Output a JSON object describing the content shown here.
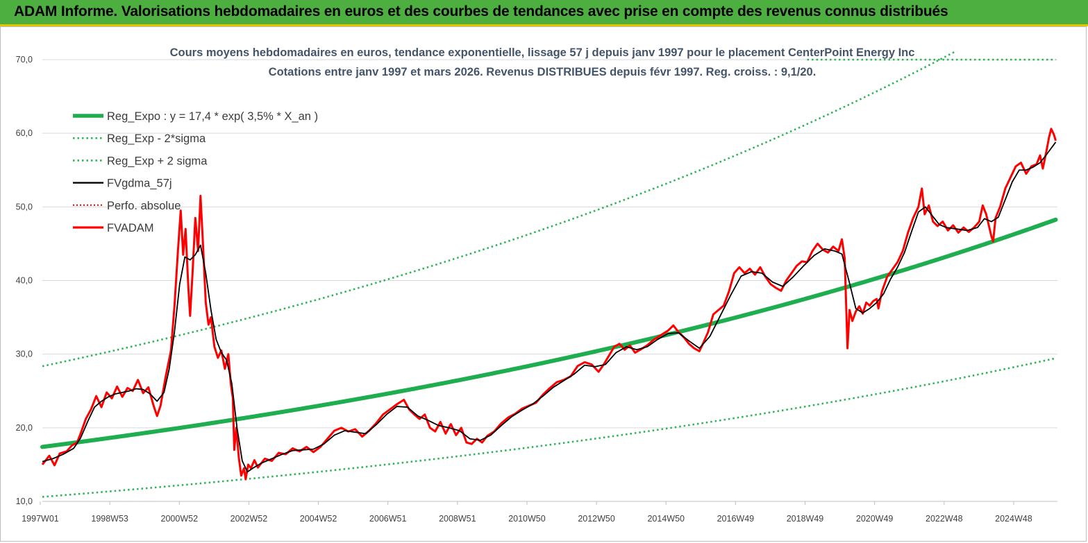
{
  "header": {
    "title": "ADAM Informe. Valorisations hebdomadaires en euros et des courbes de tendances avec prise en compte des revenus connus distribués"
  },
  "colors": {
    "header_bg": "#4CAF3F",
    "header_border": "#E8C400",
    "reg_green": "#1FAE4F",
    "band_green": "#2DB457",
    "smooth_black": "#000000",
    "price_red": "#FF0000",
    "perfo_red": "#E00000"
  },
  "chart_data": {
    "type": "line",
    "title_line1": "Cours moyens hebdomadaires en euros, tendance exponentielle, lissage 57 j depuis janv 1997 pour le placement CenterPoint Energy Inc",
    "title_line2": "Cotations entre janv 1997 et mars 2026. Revenus DISTRIBUES depuis févr 1997. Reg. croiss. : 9,1/20.",
    "xlabel": "",
    "ylabel": "",
    "ylim": [
      10,
      70
    ],
    "xlim": [
      1997.0,
      2026.2
    ],
    "y_ticks": [
      "70,0",
      "60,0",
      "50,0",
      "40,0",
      "30,0",
      "20,0",
      "10,0"
    ],
    "x_ticks": [
      {
        "label": "1997W01",
        "year": 1997.0
      },
      {
        "label": "1998W53",
        "year": 1999.0
      },
      {
        "label": "2000W52",
        "year": 2001.0
      },
      {
        "label": "2002W52",
        "year": 2003.0
      },
      {
        "label": "2004W52",
        "year": 2005.0
      },
      {
        "label": "2006W51",
        "year": 2007.0
      },
      {
        "label": "2008W51",
        "year": 2009.0
      },
      {
        "label": "2010W50",
        "year": 2011.0
      },
      {
        "label": "2012W50",
        "year": 2013.0
      },
      {
        "label": "2014W50",
        "year": 2015.0
      },
      {
        "label": "2016W49",
        "year": 2017.0
      },
      {
        "label": "2018W49",
        "year": 2019.0
      },
      {
        "label": "2020W49",
        "year": 2021.0
      },
      {
        "label": "2022W48",
        "year": 2023.0
      },
      {
        "label": "2024W48",
        "year": 2025.0
      }
    ],
    "legend": [
      {
        "key": "reg",
        "label": "Reg_Expo : y = 17,4 * exp( 3,5% *  X_an )"
      },
      {
        "key": "lower",
        "label": "Reg_Exp - 2*sigma"
      },
      {
        "key": "upper",
        "label": "Reg_Exp + 2 sigma"
      },
      {
        "key": "smooth",
        "label": "FVgdma_57j"
      },
      {
        "key": "perfo",
        "label": "Perfo. absolue"
      },
      {
        "key": "price",
        "label": "FVADAM"
      }
    ],
    "regression": {
      "a": 17.4,
      "rate": 0.035,
      "lower_factor": 0.61,
      "upper_factor": 1.63
    },
    "perfo_absolue_level": 70.0,
    "perfo_absolue_from_year": 2019.0,
    "fvadam": [
      [
        1997.0,
        15.0
      ],
      [
        1997.2,
        16.2
      ],
      [
        1997.35,
        14.9
      ],
      [
        1997.5,
        16.5
      ],
      [
        1997.7,
        16.8
      ],
      [
        1997.85,
        17.6
      ],
      [
        1998.0,
        18.0
      ],
      [
        1998.1,
        19.2
      ],
      [
        1998.25,
        21.2
      ],
      [
        1998.4,
        22.5
      ],
      [
        1998.55,
        24.3
      ],
      [
        1998.7,
        22.8
      ],
      [
        1998.85,
        24.8
      ],
      [
        1999.0,
        24.0
      ],
      [
        1999.15,
        25.6
      ],
      [
        1999.3,
        24.2
      ],
      [
        1999.45,
        25.4
      ],
      [
        1999.6,
        25.0
      ],
      [
        1999.75,
        26.5
      ],
      [
        1999.9,
        24.7
      ],
      [
        2000.05,
        25.5
      ],
      [
        2000.2,
        23.0
      ],
      [
        2000.3,
        21.6
      ],
      [
        2000.4,
        23.0
      ],
      [
        2000.55,
        27.0
      ],
      [
        2000.7,
        30.5
      ],
      [
        2000.8,
        36.5
      ],
      [
        2000.9,
        44.0
      ],
      [
        2000.98,
        49.5
      ],
      [
        2001.05,
        43.5
      ],
      [
        2001.12,
        47.0
      ],
      [
        2001.2,
        39.0
      ],
      [
        2001.25,
        35.2
      ],
      [
        2001.32,
        41.0
      ],
      [
        2001.4,
        48.5
      ],
      [
        2001.48,
        44.0
      ],
      [
        2001.55,
        51.5
      ],
      [
        2001.62,
        45.0
      ],
      [
        2001.7,
        37.0
      ],
      [
        2001.78,
        34.0
      ],
      [
        2001.85,
        35.0
      ],
      [
        2001.95,
        31.0
      ],
      [
        2002.05,
        29.5
      ],
      [
        2002.15,
        30.5
      ],
      [
        2002.25,
        28.0
      ],
      [
        2002.35,
        30.0
      ],
      [
        2002.42,
        26.0
      ],
      [
        2002.48,
        24.0
      ],
      [
        2002.52,
        17.0
      ],
      [
        2002.58,
        20.0
      ],
      [
        2002.65,
        16.0
      ],
      [
        2002.72,
        13.5
      ],
      [
        2002.8,
        14.5
      ],
      [
        2002.85,
        13.0
      ],
      [
        2002.92,
        15.0
      ],
      [
        2003.0,
        14.5
      ],
      [
        2003.1,
        15.6
      ],
      [
        2003.2,
        14.6
      ],
      [
        2003.4,
        15.8
      ],
      [
        2003.6,
        15.5
      ],
      [
        2003.8,
        16.6
      ],
      [
        2004.0,
        16.4
      ],
      [
        2004.2,
        17.2
      ],
      [
        2004.4,
        16.8
      ],
      [
        2004.6,
        17.4
      ],
      [
        2004.8,
        16.7
      ],
      [
        2005.0,
        17.4
      ],
      [
        2005.2,
        18.5
      ],
      [
        2005.4,
        19.6
      ],
      [
        2005.6,
        20.0
      ],
      [
        2005.8,
        19.5
      ],
      [
        2006.0,
        19.8
      ],
      [
        2006.2,
        18.8
      ],
      [
        2006.4,
        19.6
      ],
      [
        2006.6,
        20.6
      ],
      [
        2006.8,
        21.8
      ],
      [
        2007.0,
        22.5
      ],
      [
        2007.2,
        23.2
      ],
      [
        2007.4,
        23.8
      ],
      [
        2007.55,
        22.5
      ],
      [
        2007.7,
        21.8
      ],
      [
        2007.85,
        21.2
      ],
      [
        2008.0,
        21.8
      ],
      [
        2008.15,
        20.0
      ],
      [
        2008.3,
        19.5
      ],
      [
        2008.45,
        20.8
      ],
      [
        2008.6,
        19.2
      ],
      [
        2008.75,
        20.5
      ],
      [
        2008.9,
        19.0
      ],
      [
        2009.05,
        20.0
      ],
      [
        2009.2,
        18.0
      ],
      [
        2009.35,
        17.8
      ],
      [
        2009.5,
        18.5
      ],
      [
        2009.65,
        18.0
      ],
      [
        2009.8,
        18.9
      ],
      [
        2010.0,
        19.5
      ],
      [
        2010.2,
        20.6
      ],
      [
        2010.4,
        21.4
      ],
      [
        2010.6,
        21.9
      ],
      [
        2010.8,
        22.6
      ],
      [
        2011.0,
        23.0
      ],
      [
        2011.2,
        23.4
      ],
      [
        2011.4,
        24.5
      ],
      [
        2011.6,
        25.4
      ],
      [
        2011.8,
        26.2
      ],
      [
        2012.0,
        26.5
      ],
      [
        2012.2,
        27.0
      ],
      [
        2012.4,
        28.4
      ],
      [
        2012.6,
        28.9
      ],
      [
        2012.8,
        28.6
      ],
      [
        2013.0,
        27.6
      ],
      [
        2013.15,
        28.6
      ],
      [
        2013.3,
        29.8
      ],
      [
        2013.45,
        31.0
      ],
      [
        2013.6,
        31.4
      ],
      [
        2013.75,
        30.6
      ],
      [
        2013.9,
        31.2
      ],
      [
        2014.05,
        30.2
      ],
      [
        2014.2,
        30.6
      ],
      [
        2014.4,
        31.2
      ],
      [
        2014.6,
        32.0
      ],
      [
        2014.8,
        32.6
      ],
      [
        2015.0,
        33.2
      ],
      [
        2015.15,
        33.9
      ],
      [
        2015.3,
        33.0
      ],
      [
        2015.45,
        32.3
      ],
      [
        2015.6,
        31.4
      ],
      [
        2015.75,
        30.8
      ],
      [
        2015.9,
        30.4
      ],
      [
        2016.0,
        31.4
      ],
      [
        2016.15,
        33.0
      ],
      [
        2016.3,
        35.4
      ],
      [
        2016.45,
        36.0
      ],
      [
        2016.6,
        36.6
      ],
      [
        2016.75,
        38.5
      ],
      [
        2016.9,
        41.0
      ],
      [
        2017.05,
        41.8
      ],
      [
        2017.2,
        41.0
      ],
      [
        2017.35,
        41.6
      ],
      [
        2017.5,
        40.8
      ],
      [
        2017.65,
        41.8
      ],
      [
        2017.8,
        40.5
      ],
      [
        2017.95,
        39.5
      ],
      [
        2018.1,
        39.0
      ],
      [
        2018.25,
        38.6
      ],
      [
        2018.4,
        40.0
      ],
      [
        2018.55,
        41.0
      ],
      [
        2018.7,
        42.0
      ],
      [
        2018.85,
        42.6
      ],
      [
        2019.0,
        42.5
      ],
      [
        2019.15,
        44.0
      ],
      [
        2019.3,
        45.0
      ],
      [
        2019.45,
        44.2
      ],
      [
        2019.6,
        43.8
      ],
      [
        2019.75,
        44.6
      ],
      [
        2019.9,
        44.0
      ],
      [
        2020.0,
        45.6
      ],
      [
        2020.08,
        43.0
      ],
      [
        2020.12,
        37.0
      ],
      [
        2020.16,
        30.8
      ],
      [
        2020.22,
        36.0
      ],
      [
        2020.3,
        34.5
      ],
      [
        2020.4,
        35.8
      ],
      [
        2020.5,
        36.5
      ],
      [
        2020.6,
        35.5
      ],
      [
        2020.7,
        37.0
      ],
      [
        2020.8,
        36.6
      ],
      [
        2020.9,
        37.2
      ],
      [
        2021.0,
        37.5
      ],
      [
        2021.05,
        36.2
      ],
      [
        2021.15,
        38.5
      ],
      [
        2021.3,
        40.5
      ],
      [
        2021.45,
        41.5
      ],
      [
        2021.6,
        42.5
      ],
      [
        2021.75,
        44.0
      ],
      [
        2021.9,
        46.5
      ],
      [
        2022.05,
        48.5
      ],
      [
        2022.2,
        50.0
      ],
      [
        2022.3,
        52.5
      ],
      [
        2022.38,
        49.0
      ],
      [
        2022.5,
        50.2
      ],
      [
        2022.62,
        48.0
      ],
      [
        2022.75,
        47.4
      ],
      [
        2022.9,
        48.0
      ],
      [
        2023.05,
        46.8
      ],
      [
        2023.2,
        47.5
      ],
      [
        2023.35,
        46.5
      ],
      [
        2023.5,
        47.2
      ],
      [
        2023.65,
        46.6
      ],
      [
        2023.8,
        47.2
      ],
      [
        2023.95,
        48.0
      ],
      [
        2024.05,
        50.2
      ],
      [
        2024.15,
        49.0
      ],
      [
        2024.3,
        46.0
      ],
      [
        2024.35,
        45.3
      ],
      [
        2024.42,
        48.5
      ],
      [
        2024.55,
        50.0
      ],
      [
        2024.7,
        52.5
      ],
      [
        2024.85,
        54.0
      ],
      [
        2025.0,
        55.5
      ],
      [
        2025.15,
        56.0
      ],
      [
        2025.3,
        54.5
      ],
      [
        2025.45,
        55.5
      ],
      [
        2025.6,
        55.8
      ],
      [
        2025.7,
        57.0
      ],
      [
        2025.78,
        55.2
      ],
      [
        2025.88,
        57.5
      ],
      [
        2025.96,
        59.5
      ],
      [
        2026.02,
        60.6
      ],
      [
        2026.1,
        59.8
      ],
      [
        2026.15,
        59.0
      ]
    ],
    "fvgdma_57j": [
      [
        1997.0,
        15.4
      ],
      [
        1997.3,
        15.8
      ],
      [
        1997.6,
        16.4
      ],
      [
        1997.9,
        17.2
      ],
      [
        1998.1,
        18.6
      ],
      [
        1998.3,
        20.8
      ],
      [
        1998.5,
        22.8
      ],
      [
        1998.7,
        23.6
      ],
      [
        1998.9,
        24.2
      ],
      [
        1999.1,
        24.6
      ],
      [
        1999.3,
        24.8
      ],
      [
        1999.5,
        25.0
      ],
      [
        1999.7,
        25.3
      ],
      [
        1999.9,
        25.2
      ],
      [
        2000.1,
        24.6
      ],
      [
        2000.3,
        23.6
      ],
      [
        2000.5,
        24.8
      ],
      [
        2000.65,
        28.0
      ],
      [
        2000.8,
        33.0
      ],
      [
        2000.95,
        39.5
      ],
      [
        2001.1,
        43.2
      ],
      [
        2001.25,
        42.8
      ],
      [
        2001.4,
        43.5
      ],
      [
        2001.55,
        44.8
      ],
      [
        2001.7,
        41.0
      ],
      [
        2001.85,
        36.0
      ],
      [
        2002.0,
        32.0
      ],
      [
        2002.15,
        30.2
      ],
      [
        2002.3,
        29.2
      ],
      [
        2002.45,
        26.0
      ],
      [
        2002.6,
        20.0
      ],
      [
        2002.75,
        15.5
      ],
      [
        2002.9,
        14.0
      ],
      [
        2003.05,
        14.5
      ],
      [
        2003.3,
        15.2
      ],
      [
        2003.6,
        15.8
      ],
      [
        2003.9,
        16.4
      ],
      [
        2004.2,
        16.9
      ],
      [
        2004.5,
        17.0
      ],
      [
        2004.8,
        17.1
      ],
      [
        2005.1,
        17.8
      ],
      [
        2005.4,
        19.0
      ],
      [
        2005.7,
        19.6
      ],
      [
        2006.0,
        19.4
      ],
      [
        2006.3,
        19.2
      ],
      [
        2006.6,
        20.4
      ],
      [
        2006.9,
        21.8
      ],
      [
        2007.2,
        22.9
      ],
      [
        2007.5,
        22.8
      ],
      [
        2007.8,
        21.6
      ],
      [
        2008.1,
        21.0
      ],
      [
        2008.4,
        20.3
      ],
      [
        2008.7,
        20.0
      ],
      [
        2009.0,
        19.6
      ],
      [
        2009.3,
        18.5
      ],
      [
        2009.6,
        18.3
      ],
      [
        2009.9,
        19.0
      ],
      [
        2010.2,
        20.3
      ],
      [
        2010.5,
        21.5
      ],
      [
        2010.8,
        22.4
      ],
      [
        2011.1,
        23.2
      ],
      [
        2011.4,
        24.3
      ],
      [
        2011.7,
        25.5
      ],
      [
        2012.0,
        26.4
      ],
      [
        2012.3,
        27.3
      ],
      [
        2012.6,
        28.5
      ],
      [
        2012.9,
        28.3
      ],
      [
        2013.2,
        28.6
      ],
      [
        2013.5,
        30.2
      ],
      [
        2013.8,
        31.0
      ],
      [
        2014.1,
        30.6
      ],
      [
        2014.4,
        31.0
      ],
      [
        2014.7,
        32.0
      ],
      [
        2015.0,
        32.8
      ],
      [
        2015.3,
        32.9
      ],
      [
        2015.6,
        31.8
      ],
      [
        2015.9,
        30.8
      ],
      [
        2016.2,
        32.4
      ],
      [
        2016.5,
        35.2
      ],
      [
        2016.8,
        38.0
      ],
      [
        2017.1,
        40.6
      ],
      [
        2017.4,
        41.2
      ],
      [
        2017.7,
        41.0
      ],
      [
        2018.0,
        39.8
      ],
      [
        2018.3,
        39.2
      ],
      [
        2018.6,
        40.5
      ],
      [
        2018.9,
        42.0
      ],
      [
        2019.2,
        43.4
      ],
      [
        2019.5,
        44.3
      ],
      [
        2019.8,
        44.0
      ],
      [
        2020.0,
        43.6
      ],
      [
        2020.2,
        40.0
      ],
      [
        2020.4,
        36.2
      ],
      [
        2020.6,
        35.6
      ],
      [
        2020.8,
        36.2
      ],
      [
        2021.0,
        37.0
      ],
      [
        2021.2,
        38.2
      ],
      [
        2021.4,
        40.2
      ],
      [
        2021.6,
        41.8
      ],
      [
        2021.8,
        43.8
      ],
      [
        2022.0,
        46.6
      ],
      [
        2022.2,
        49.3
      ],
      [
        2022.4,
        50.0
      ],
      [
        2022.6,
        48.8
      ],
      [
        2022.8,
        47.6
      ],
      [
        2023.0,
        47.2
      ],
      [
        2023.3,
        47.0
      ],
      [
        2023.6,
        46.8
      ],
      [
        2023.9,
        47.2
      ],
      [
        2024.1,
        48.4
      ],
      [
        2024.3,
        48.0
      ],
      [
        2024.5,
        48.6
      ],
      [
        2024.7,
        51.0
      ],
      [
        2024.9,
        53.4
      ],
      [
        2025.1,
        55.0
      ],
      [
        2025.3,
        55.0
      ],
      [
        2025.5,
        55.4
      ],
      [
        2025.7,
        56.0
      ],
      [
        2025.9,
        57.2
      ],
      [
        2026.15,
        58.8
      ]
    ]
  }
}
